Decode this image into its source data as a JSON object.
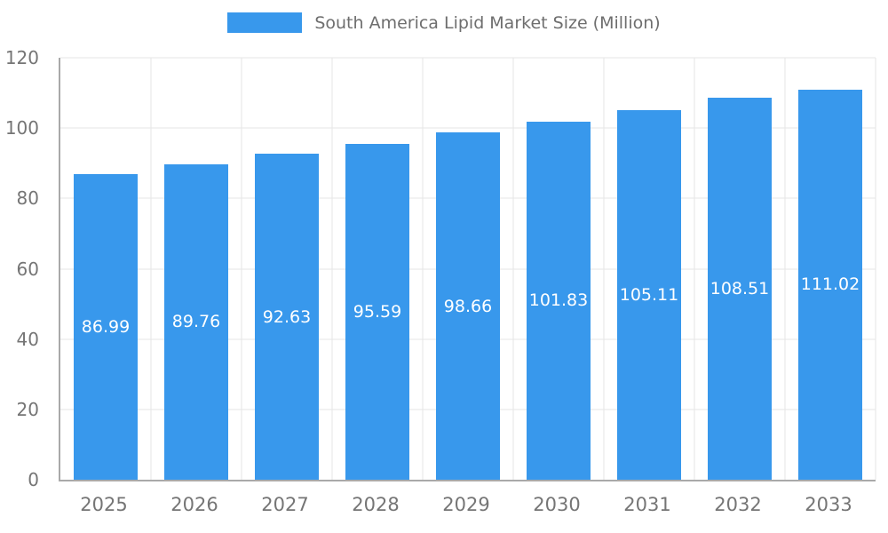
{
  "legend": {
    "label": "South America Lipid Market Size (Million)",
    "swatch_color": "#3898ec"
  },
  "chart_data": {
    "type": "bar",
    "title": "South America Lipid Market Size (Million)",
    "categories": [
      "2025",
      "2026",
      "2027",
      "2028",
      "2029",
      "2030",
      "2031",
      "2032",
      "2033"
    ],
    "values": [
      86.99,
      89.76,
      92.63,
      95.59,
      98.66,
      101.83,
      105.11,
      108.51,
      111.02
    ],
    "value_labels": [
      "86.99",
      "89.76",
      "92.63",
      "95.59",
      "98.66",
      "101.83",
      "105.11",
      "108.51",
      "111.02"
    ],
    "xlabel": "",
    "ylabel": "",
    "ylim": [
      0,
      120
    ],
    "yticks": [
      0,
      20,
      40,
      60,
      80,
      100,
      120
    ],
    "grid": true,
    "legend_position": "top",
    "bar_color": "#3898ec",
    "value_label_color": "#ffffff",
    "bar_width_fraction": 0.7
  }
}
